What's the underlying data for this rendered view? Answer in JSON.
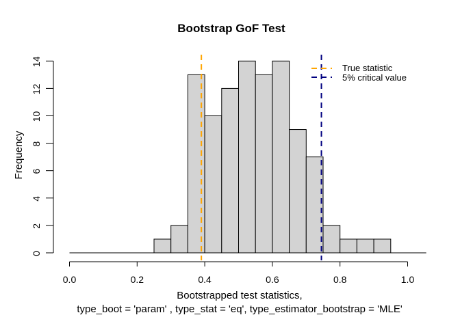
{
  "chart_data": {
    "type": "histogram",
    "title": "Bootstrap GoF Test",
    "ylabel": "Frequency",
    "xlabel_lines": [
      "Bootstrapped test statistics,",
      "type_boot = 'param' , type_stat = 'eq', type_estimator_bootstrap = 'MLE'"
    ],
    "bins": {
      "start": 0.25,
      "width": 0.05
    },
    "counts": [
      1,
      2,
      13,
      10,
      12,
      14,
      13,
      14,
      9,
      7,
      2,
      1,
      1,
      1
    ],
    "total_count": 100,
    "xticks": {
      "values": [
        0.0,
        0.2,
        0.4,
        0.6,
        0.8,
        1.0
      ],
      "labels": [
        "0.0",
        "0.2",
        "0.4",
        "0.6",
        "0.8",
        "1.0"
      ]
    },
    "yticks": [
      0,
      2,
      4,
      6,
      8,
      10,
      12,
      14
    ],
    "xlim": [
      0,
      1.055
    ],
    "ylim": [
      0,
      14
    ],
    "baseline_extent": [
      0,
      1.055
    ],
    "grid": false,
    "bar_fill": "#d3d3d3",
    "bar_stroke": "#000000",
    "axis_color": "#000000",
    "legend_position": "top-right",
    "vlines": [
      {
        "value": 0.39,
        "label": "True statistic",
        "color": "#ffa500",
        "style": "dashed"
      },
      {
        "value": 0.745,
        "label": "5% critical value",
        "color": "#000080",
        "style": "dashed"
      }
    ]
  }
}
